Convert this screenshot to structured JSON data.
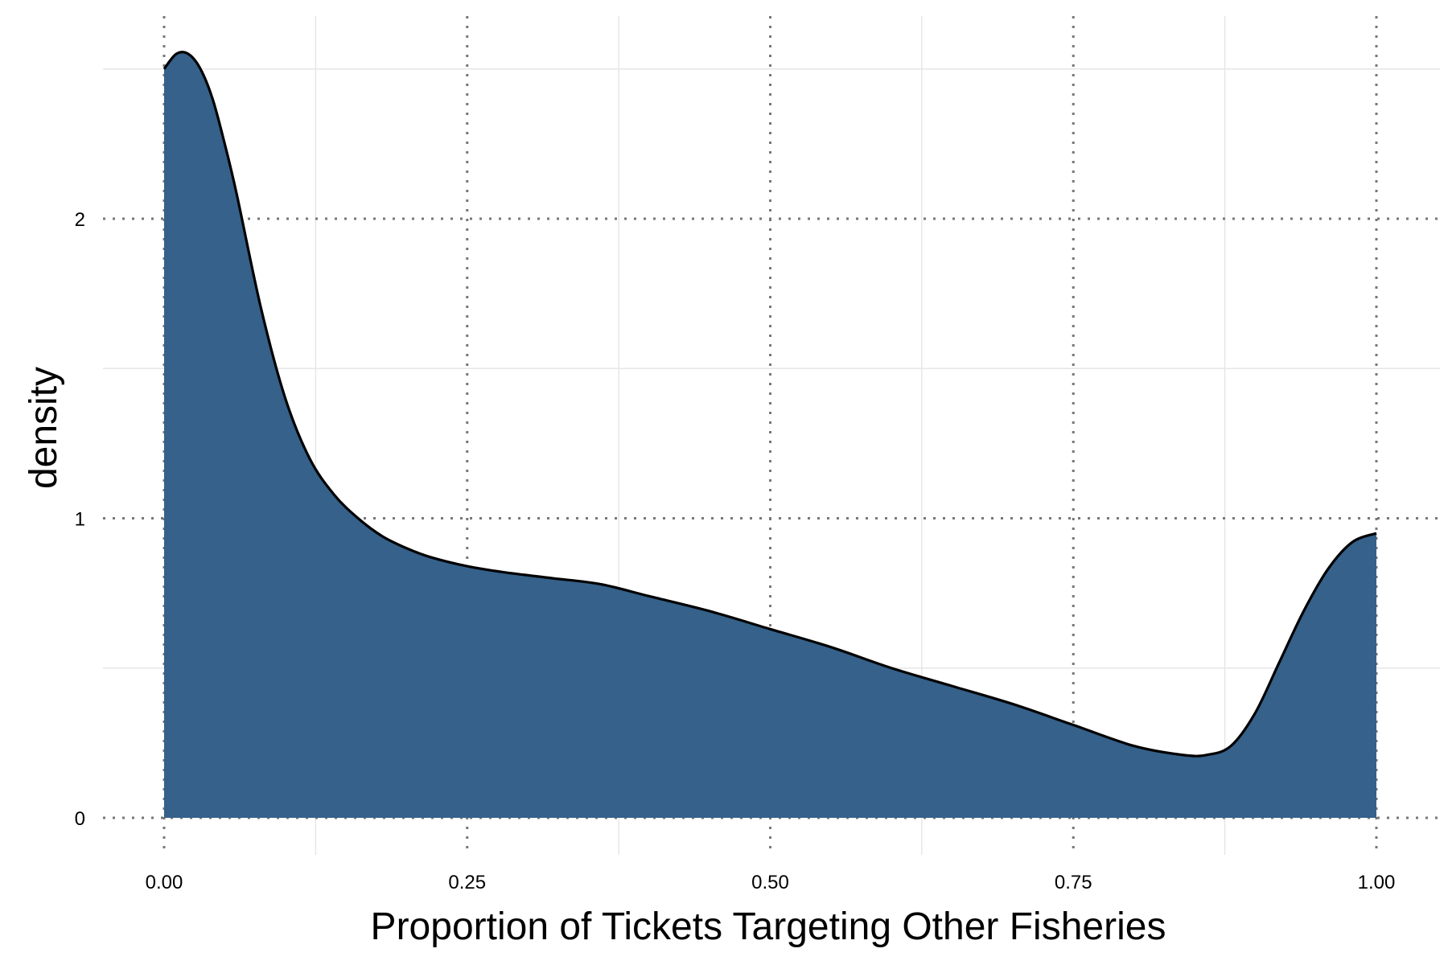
{
  "chart_data": {
    "type": "area",
    "xlabel": "Proportion of Tickets Targeting Other Fisheries",
    "ylabel": "density",
    "xlim": [
      -0.1,
      1.1
    ],
    "ylim": [
      -0.12,
      2.6
    ],
    "x_ticks": [
      {
        "value": 0.0,
        "label": "0.00"
      },
      {
        "value": 0.25,
        "label": "0.25"
      },
      {
        "value": 0.5,
        "label": "0.50"
      },
      {
        "value": 0.75,
        "label": "0.75"
      },
      {
        "value": 1.0,
        "label": "1.00"
      }
    ],
    "y_ticks": [
      {
        "value": 0,
        "label": "0"
      },
      {
        "value": 1,
        "label": "1"
      },
      {
        "value": 2,
        "label": "2"
      }
    ],
    "x_minor_grid": [
      0.125,
      0.375,
      0.625,
      0.875
    ],
    "y_minor_grid": [
      0.5,
      1.5,
      2.5
    ],
    "grid": true,
    "legend": "none",
    "colors": {
      "fill": "#35618a",
      "outline": "#000000",
      "major_grid": "#777777",
      "minor_grid": "#e6e6e6"
    },
    "series": [
      {
        "x": [
          0,
          0.01,
          0.02,
          0.03,
          0.04,
          0.05,
          0.06,
          0.08,
          0.1,
          0.12,
          0.14,
          0.16,
          0.18,
          0.2,
          0.22,
          0.25,
          0.28,
          0.32,
          0.36,
          0.4,
          0.45,
          0.5,
          0.55,
          0.6,
          0.65,
          0.7,
          0.75,
          0.8,
          0.84,
          0.86,
          0.88,
          0.9,
          0.92,
          0.94,
          0.96,
          0.98,
          1.0
        ],
        "y": [
          2.5,
          2.55,
          2.55,
          2.5,
          2.4,
          2.25,
          2.08,
          1.7,
          1.4,
          1.2,
          1.08,
          1.0,
          0.94,
          0.9,
          0.87,
          0.84,
          0.82,
          0.8,
          0.78,
          0.74,
          0.69,
          0.63,
          0.57,
          0.5,
          0.44,
          0.38,
          0.31,
          0.24,
          0.21,
          0.21,
          0.24,
          0.35,
          0.52,
          0.69,
          0.83,
          0.92,
          0.95
        ]
      }
    ]
  }
}
